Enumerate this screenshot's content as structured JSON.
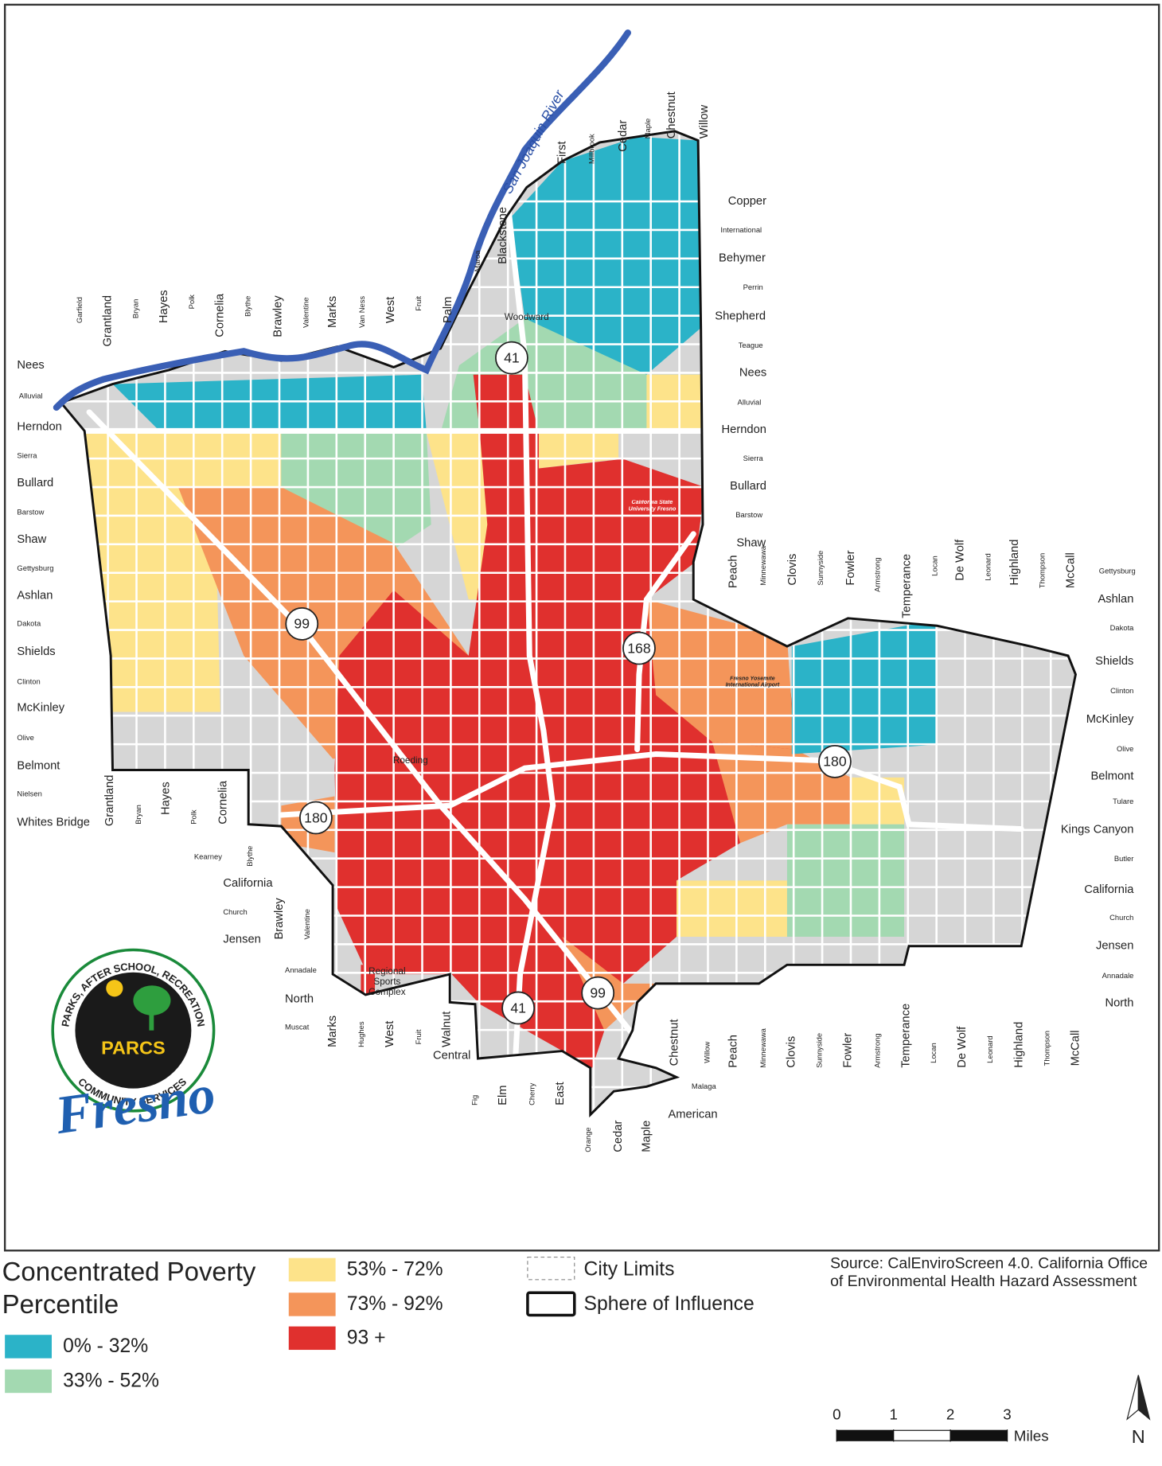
{
  "map": {
    "river_label": "San Joaquin River",
    "highway_shields": [
      "41",
      "99",
      "168",
      "180",
      "180",
      "99",
      "41"
    ],
    "place_labels": {
      "csu": "California State University Fresno",
      "airport": "Fresno Yosemite International Airport",
      "sports": "Regional Sports Complex",
      "roeding": "Roeding",
      "woodward": "Woodward"
    },
    "street_labels": {
      "north_streets": [
        "Garfield",
        "Grantland",
        "Bryan",
        "Hayes",
        "Polk",
        "Cornelia",
        "Blythe",
        "Brawley",
        "Valentine",
        "Marks",
        "Van Ness",
        "West",
        "Fruit",
        "Palm",
        "Maroa",
        "Blackstone"
      ],
      "top_streets": [
        "First",
        "Millbrook",
        "Cedar",
        "Maple",
        "Chestnut",
        "Willow"
      ],
      "north_avenues": [
        "Copper",
        "International",
        "Behymer",
        "Perrin",
        "Shepherd",
        "Teague",
        "Nees",
        "Alluvial",
        "Herndon",
        "Sierra",
        "Bullard",
        "Barstow",
        "Shaw"
      ],
      "left_avenues": [
        "Nees",
        "Alluvial",
        "Herndon",
        "Sierra",
        "Bullard",
        "Barstow",
        "Shaw",
        "Gettysburg",
        "Ashlan",
        "Dakota",
        "Shields",
        "Clinton",
        "McKinley",
        "Olive",
        "Belmont",
        "Nielsen",
        "Whites Bridge"
      ],
      "east_streets": [
        "Peach",
        "Minnewawa",
        "Clovis",
        "Sunnyside",
        "Fowler",
        "Armstrong",
        "Temperance",
        "Locan",
        "De Wolf",
        "Leonard",
        "Highland",
        "Thompson",
        "McCall"
      ],
      "east_avenues": [
        "Gettysburg",
        "Ashlan",
        "Dakota",
        "Shields",
        "Clinton",
        "McKinley",
        "Olive",
        "Belmont",
        "Tulare",
        "Kings Canyon",
        "Butler",
        "California",
        "Church",
        "Jensen",
        "Annadale",
        "North"
      ],
      "west_lower_streets": [
        "Grantland",
        "Bryan",
        "Hayes",
        "Polk",
        "Cornelia",
        "Blythe",
        "Brawley",
        "Valentine"
      ],
      "southwest_avenues": [
        "Kearney",
        "California",
        "Church",
        "Jensen",
        "Annadale",
        "North",
        "Muscat",
        "Central"
      ],
      "south_streets": [
        "Marks",
        "Hughes",
        "West",
        "Fruit",
        "Walnut",
        "Fig",
        "Elm",
        "Cherry",
        "East",
        "Orange",
        "Cedar",
        "Maple"
      ],
      "south_east_streets": [
        "Chestnut",
        "Willow",
        "Peach",
        "Minnewawa",
        "Clovis",
        "Sunnyside",
        "Fowler",
        "Armstrong",
        "Temperance",
        "Locan",
        "De Wolf",
        "Leonard",
        "Highland",
        "Thompson",
        "McCall"
      ],
      "south_avenues": [
        "Malaga",
        "American"
      ]
    }
  },
  "legend": {
    "title": "Concentrated Poverty Percentile",
    "classes": [
      {
        "label": "0% - 32%",
        "color": "#2bb3c8"
      },
      {
        "label": "33% - 52%",
        "color": "#a3d9b1"
      },
      {
        "label": "53% - 72%",
        "color": "#fde38a"
      },
      {
        "label": "73% - 92%",
        "color": "#f4955a"
      },
      {
        "label": "93 +",
        "color": "#e0302e"
      }
    ],
    "city_limits": "City Limits",
    "sphere_of_influence": "Sphere of Influence"
  },
  "source": "Source: CalEnviroScreen 4.0. California Office of Environmental Health Hazard Assessment",
  "scale_bar": {
    "ticks": [
      0,
      1,
      2,
      3
    ],
    "unit": "Miles"
  },
  "north_arrow": "N",
  "logo": {
    "arc_top": "PARKS, AFTER SCHOOL, RECREATION",
    "arc_bottom": "COMMUNITY SERVICES",
    "center": "PARCS",
    "script": "Fresno"
  }
}
